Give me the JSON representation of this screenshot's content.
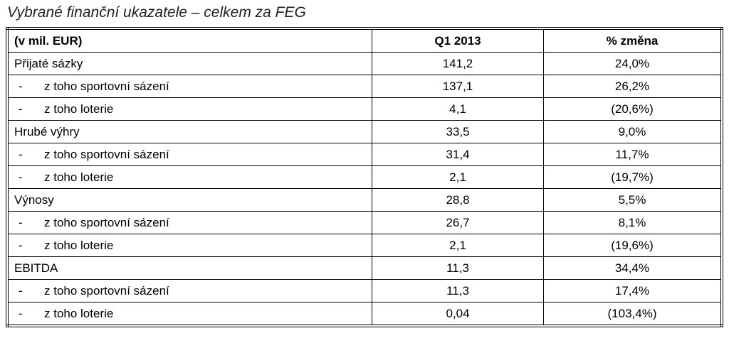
{
  "title": "Vybrané finanční ukazatele – celkem za FEG",
  "table": {
    "header": [
      "(v mil. EUR)",
      "Q1 2013",
      "% změna"
    ],
    "rows": [
      [
        "Přijaté sázky",
        "141,2",
        "24,0%"
      ],
      [
        "-",
        "z toho sportovní sázení",
        "137,1",
        "26,2%"
      ],
      [
        "-",
        "z toho loterie",
        "4,1",
        "(20,6%)"
      ],
      [
        "Hrubé výhry",
        "33,5",
        "9,0%"
      ],
      [
        "-",
        "z toho sportovní sázení",
        "31,4",
        "11,7%"
      ],
      [
        "-",
        "z toho loterie",
        "2,1",
        "(19,7%)"
      ],
      [
        "Výnosy",
        "28,8",
        "5,5%"
      ],
      [
        "-",
        "z toho sportovní sázení",
        "26,7",
        "8,1%"
      ],
      [
        "-",
        "z toho loterie",
        "2,1",
        "(19,6%)"
      ],
      [
        "EBITDA",
        "11,3",
        "34,4%"
      ],
      [
        "-",
        "z toho sportovní sázení",
        "11,3",
        "17,4%"
      ],
      [
        "-",
        "z toho loterie",
        "0,04",
        "(103,4%)"
      ]
    ]
  }
}
